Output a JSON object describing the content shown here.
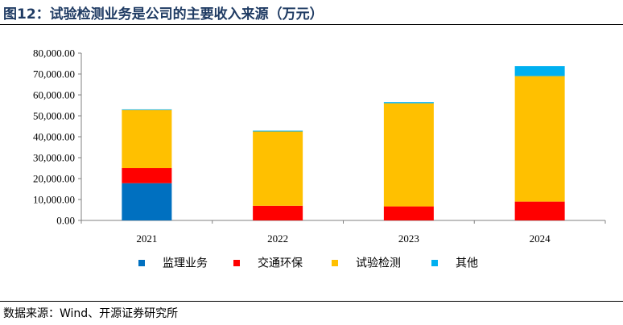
{
  "figure": {
    "title": "图12：试验检测业务是公司的主要收入来源（万元）",
    "source": "数据来源：Wind、开源证券研究所"
  },
  "chart_data": {
    "type": "bar",
    "stacked": true,
    "categories": [
      "2021",
      "2022",
      "2023",
      "2024"
    ],
    "series": [
      {
        "name": "监理业务",
        "color": "#0070c0",
        "values": [
          17800,
          0,
          0,
          0
        ]
      },
      {
        "name": "交通环保",
        "color": "#ff0000",
        "values": [
          7200,
          7000,
          6700,
          9000
        ]
      },
      {
        "name": "试验检测",
        "color": "#ffc000",
        "values": [
          27800,
          35500,
          49300,
          60000
        ]
      },
      {
        "name": "其他",
        "color": "#00b0f0",
        "values": [
          300,
          400,
          500,
          4800
        ]
      }
    ],
    "yticks": [
      "0.00",
      "10,000.00",
      "20,000.00",
      "30,000.00",
      "40,000.00",
      "50,000.00",
      "60,000.00",
      "70,000.00",
      "80,000.00"
    ],
    "ylim": [
      0,
      80000
    ],
    "ystep": 10000,
    "legend_position": "bottom",
    "grid": false
  }
}
